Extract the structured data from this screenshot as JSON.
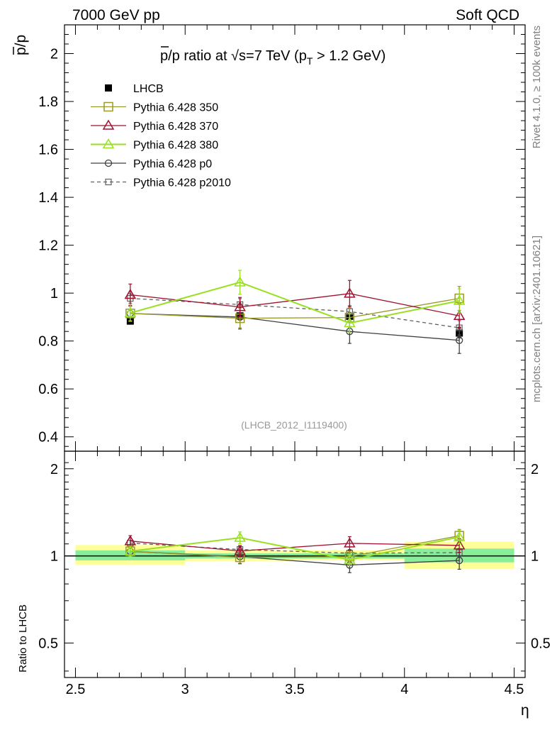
{
  "header": {
    "left": "7000 GeV pp",
    "right": "Soft QCD"
  },
  "side_text": {
    "rivet": "Rivet 4.1.0, ≥ 100k events",
    "mcplots": "mcplots.cern.ch [arXiv:2401.10621]"
  },
  "colors": {
    "LHCB": "#000000",
    "p350": "#9a9a2a",
    "p370": "#a01030",
    "p380": "#99e020",
    "p0": "#404040",
    "p2010": "#606060",
    "band_yellow": "#ffff99",
    "band_green": "#88ee99"
  },
  "chart_data": [
    {
      "type": "line",
      "panel": "main",
      "title_parts": {
        "pbar": "p",
        "rest": "/p ratio at √s=7 TeV (p",
        "sub": "T",
        "tail": " > 1.2 GeV)"
      },
      "ylabel": "p̄/p",
      "ylim": [
        0.34,
        2.12
      ],
      "yticks": [
        0.4,
        0.6,
        0.8,
        1,
        1.2,
        1.4,
        1.6,
        1.8,
        2
      ],
      "yticklabels": [
        "0.4",
        "0.6",
        "0.8",
        "1",
        "1.2",
        "1.4",
        "1.6",
        "1.8",
        "2"
      ],
      "xlim": [
        2.45,
        4.55
      ],
      "watermark": "(LHCB_2012_I1119400)",
      "x": [
        2.75,
        3.25,
        3.75,
        4.25
      ],
      "series": [
        {
          "key": "LHCB",
          "name": "LHCB",
          "marker": "filled-square",
          "values": [
            0.883,
            0.905,
            0.903,
            0.833
          ],
          "errors": [
            0.012,
            0.012,
            0.015,
            0.02
          ]
        },
        {
          "key": "p350",
          "name": "Pythia 6.428 350",
          "marker": "open-square",
          "values": [
            0.915,
            0.895,
            0.898,
            0.978
          ],
          "errors": [
            0.03,
            0.04,
            0.04,
            0.05
          ]
        },
        {
          "key": "p370",
          "name": "Pythia 6.428 370",
          "marker": "open-triangle",
          "values": [
            0.993,
            0.942,
            0.998,
            0.905
          ],
          "errors": [
            0.045,
            0.04,
            0.055,
            0.05
          ]
        },
        {
          "key": "p380",
          "name": "Pythia 6.428 380",
          "marker": "open-triangle",
          "values": [
            0.917,
            1.045,
            0.875,
            0.968
          ],
          "errors": [
            0.035,
            0.05,
            0.04,
            0.05
          ]
        },
        {
          "key": "p0",
          "name": "Pythia 6.428 p0",
          "marker": "open-circle",
          "values": [
            0.915,
            0.9,
            0.84,
            0.803
          ],
          "errors": [
            0.03,
            0.05,
            0.05,
            0.055
          ]
        },
        {
          "key": "p2010",
          "name": "Pythia 6.428 p2010",
          "marker": "small-open-square",
          "dashed": true,
          "values": [
            0.978,
            0.952,
            0.923,
            0.855
          ],
          "errors": [
            0.02,
            0.025,
            0.025,
            0.03
          ]
        }
      ]
    },
    {
      "type": "line",
      "panel": "ratio",
      "ylabel": "Ratio to LHCB",
      "ylim": [
        0.38,
        2.3
      ],
      "log_y": true,
      "yticks": [
        0.5,
        1,
        2
      ],
      "yticklabels": [
        "0.5",
        "1",
        "2"
      ],
      "xlim": [
        2.45,
        4.55
      ],
      "xlabel": "η",
      "xticks": [
        2.5,
        3,
        3.5,
        4,
        4.5
      ],
      "xticklabels": [
        "2.5",
        "3",
        "3.5",
        "4",
        "4.5"
      ],
      "bands": [
        {
          "xlo": 2.5,
          "xhi": 3.0,
          "yellow": [
            0.93,
            1.09
          ],
          "green": [
            0.965,
            1.045
          ]
        },
        {
          "xlo": 3.0,
          "xhi": 3.5,
          "yellow": [
            0.96,
            1.045
          ],
          "green": [
            0.98,
            1.02
          ]
        },
        {
          "xlo": 3.5,
          "xhi": 4.0,
          "yellow": [
            0.965,
            1.045
          ],
          "green": [
            0.98,
            1.02
          ]
        },
        {
          "xlo": 4.0,
          "xhi": 4.5,
          "yellow": [
            0.9,
            1.12
          ],
          "green": [
            0.95,
            1.06
          ]
        }
      ],
      "x": [
        2.75,
        3.25,
        3.75,
        4.25
      ],
      "series": [
        {
          "key": "p350",
          "values": [
            1.037,
            0.989,
            0.994,
            1.174
          ],
          "errors": [
            0.035,
            0.045,
            0.045,
            0.06
          ]
        },
        {
          "key": "p370",
          "values": [
            1.125,
            1.04,
            1.105,
            1.087
          ],
          "errors": [
            0.05,
            0.045,
            0.06,
            0.06
          ]
        },
        {
          "key": "p380",
          "values": [
            1.038,
            1.155,
            0.969,
            1.162
          ],
          "errors": [
            0.04,
            0.055,
            0.045,
            0.06
          ]
        },
        {
          "key": "p0",
          "values": [
            1.036,
            0.994,
            0.93,
            0.964
          ],
          "errors": [
            0.035,
            0.055,
            0.055,
            0.065
          ]
        },
        {
          "key": "p2010",
          "values": [
            1.107,
            1.052,
            1.022,
            1.026
          ],
          "errors": [
            0.025,
            0.03,
            0.03,
            0.035
          ]
        }
      ]
    }
  ]
}
